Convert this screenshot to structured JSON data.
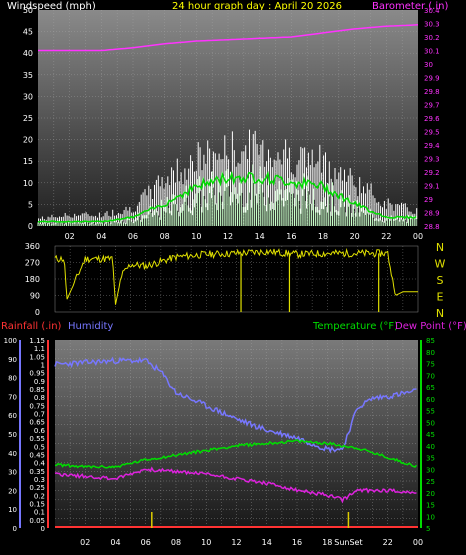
{
  "header": {
    "windspeed_label": "Windspeed (mph)",
    "title": "24 hour graph day : April 20 2026",
    "barometer_label": "Barometer (.in)"
  },
  "lower_header": {
    "rainfall_label": "Rainfall (.in)",
    "humidity_label": "Humidity",
    "temperature_label": "Temperature (°F)",
    "dewpoint_label": "Dew Point (°F)"
  },
  "colors": {
    "windspeed": "#ffffff",
    "windgust": "#c8ffc8",
    "windavg": "#00dd00",
    "barometer": "#ff33ff",
    "direction": "#e0e000",
    "rainfall": "#ff3333",
    "humidity": "#7777ff",
    "temperature": "#00dd00",
    "dewpoint": "#dd22dd",
    "axis_text": "#ffffff"
  },
  "chart_data": [
    {
      "type": "line",
      "name": "windspeed-barometer",
      "x_ticks": [
        "02",
        "04",
        "06",
        "08",
        "10",
        "12",
        "14",
        "16",
        "18",
        "20",
        "22",
        "00"
      ],
      "y_left_label": "Windspeed (mph)",
      "y_left_ticks": [
        0,
        5,
        10,
        15,
        20,
        25,
        30,
        35,
        40,
        45,
        50
      ],
      "y_left_lim": [
        0,
        50
      ],
      "y_right_label": "Barometer (.in)",
      "y_right_ticks": [
        "28.8",
        "28.9",
        "29",
        "29.1",
        "29.2",
        "29.3",
        "29.4",
        "29.5",
        "29.6",
        "29.7",
        "29.8",
        "29.9",
        "30",
        "30.1",
        "30.2",
        "30.3",
        "30.4"
      ],
      "y_right_lim": [
        28.8,
        30.4
      ],
      "series": [
        {
          "role": "barometer",
          "axis": "right",
          "x": [
            0,
            2,
            4,
            6,
            8,
            10,
            12,
            14,
            16,
            18,
            20,
            22,
            24
          ],
          "y": [
            30.1,
            30.1,
            30.1,
            30.12,
            30.15,
            30.17,
            30.18,
            30.19,
            30.2,
            30.23,
            30.26,
            30.28,
            30.29
          ]
        },
        {
          "role": "windspeed",
          "axis": "left",
          "x": [
            0,
            2,
            4,
            6,
            8,
            10,
            12,
            14,
            16,
            18,
            20,
            22,
            24
          ],
          "y": [
            1,
            1,
            1,
            2,
            5,
            9,
            11,
            11,
            10,
            9,
            5,
            2,
            2
          ]
        },
        {
          "role": "windspeed-peak",
          "axis": "left",
          "x": [
            0,
            2,
            4,
            6,
            8,
            10,
            12,
            14,
            16,
            18,
            20,
            22,
            24
          ],
          "y": [
            2,
            3,
            3,
            5,
            13,
            18,
            20,
            21,
            19,
            17,
            12,
            6,
            4
          ]
        }
      ]
    },
    {
      "type": "line",
      "name": "wind-direction",
      "x_ticks": [
        "02",
        "04",
        "06",
        "08",
        "10",
        "12",
        "14",
        "16",
        "18",
        "20",
        "22",
        "00"
      ],
      "y_ticks": [
        0,
        90,
        180,
        270,
        360
      ],
      "y_lim": [
        0,
        360
      ],
      "direction_labels": [
        "N",
        "W",
        "S",
        "E",
        "N"
      ],
      "series": [
        {
          "role": "direction",
          "x": [
            0,
            0.6,
            0.8,
            2,
            3.8,
            4.0,
            4.4,
            5,
            6,
            8,
            10,
            12,
            14,
            16,
            18,
            20,
            22,
            22.5,
            23,
            24
          ],
          "y": [
            290,
            290,
            70,
            290,
            290,
            40,
            200,
            260,
            250,
            300,
            315,
            320,
            330,
            315,
            320,
            320,
            320,
            90,
            110,
            110
          ]
        }
      ]
    },
    {
      "type": "line",
      "name": "temperature-humidity-rain",
      "x_ticks": [
        "02",
        "04",
        "06",
        "08",
        "10",
        "12",
        "14",
        "16",
        "18",
        "SunSet",
        "22",
        "00"
      ],
      "y_humidity_label": "Humidity",
      "y_humidity_ticks": [
        0,
        10,
        20,
        30,
        40,
        50,
        60,
        70,
        80,
        90,
        100
      ],
      "y_humidity_lim": [
        0,
        100
      ],
      "y_rain_label": "Rainfall (.in)",
      "y_rain_ticks": [
        "0",
        "0.05",
        "0.1",
        "0.15",
        "0.2",
        "0.25",
        "0.3",
        "0.35",
        "0.4",
        "0.45",
        "0.5",
        "0.55",
        "0.6",
        "0.65",
        "0.7",
        "0.75",
        "0.8",
        "0.85",
        "0.9",
        "0.95",
        "1",
        "1.05",
        "1.1",
        "1.15"
      ],
      "y_rain_lim": [
        0,
        1.15
      ],
      "y_temp_label": "Temperature (°F) Dew Point (°F)",
      "y_temp_ticks": [
        5,
        10,
        15,
        20,
        25,
        30,
        35,
        40,
        45,
        50,
        55,
        60,
        65,
        70,
        75,
        80,
        85
      ],
      "y_temp_lim": [
        5,
        85
      ],
      "series": [
        {
          "role": "humidity",
          "axis": "humidity",
          "x": [
            0,
            2,
            4,
            6,
            7,
            8,
            10,
            12,
            14,
            16,
            18,
            19,
            20,
            21,
            22,
            24
          ],
          "y": [
            87,
            88,
            89,
            89,
            83,
            72,
            65,
            58,
            52,
            48,
            42,
            42,
            64,
            69,
            70,
            73
          ]
        },
        {
          "role": "temperature",
          "axis": "temp",
          "x": [
            0,
            2,
            4,
            6,
            8,
            10,
            12,
            14,
            16,
            18,
            20,
            22,
            24
          ],
          "y": [
            32,
            31,
            31,
            34,
            36,
            38,
            40,
            41,
            42,
            41,
            39,
            35,
            31
          ]
        },
        {
          "role": "dewpoint",
          "axis": "temp",
          "x": [
            0,
            2,
            4,
            6,
            8,
            10,
            12,
            14,
            16,
            18,
            19,
            20,
            22,
            24
          ],
          "y": [
            28,
            27,
            26,
            30,
            29,
            28,
            26,
            24,
            21,
            19,
            17,
            21,
            21,
            20
          ]
        },
        {
          "role": "rainfall",
          "axis": "rain",
          "x": [
            0,
            24
          ],
          "y": [
            0,
            0
          ]
        }
      ],
      "markers": [
        {
          "role": "sunrise",
          "x": 6.4
        },
        {
          "role": "sunset",
          "x": 19.4
        }
      ]
    }
  ]
}
